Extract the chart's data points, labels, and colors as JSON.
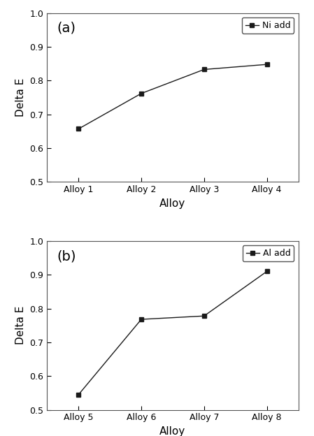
{
  "panel_a": {
    "x_labels": [
      "Alloy 1",
      "Alloy 2",
      "Alloy 3",
      "Alloy 4"
    ],
    "y_values": [
      0.657,
      0.762,
      0.833,
      0.848
    ],
    "legend_label": "Ni add",
    "panel_label": "(a)",
    "ylim": [
      0.5,
      1.0
    ],
    "yticks": [
      0.5,
      0.6,
      0.7,
      0.8,
      0.9,
      1.0
    ],
    "xlabel": "Alloy",
    "ylabel": "Delta E"
  },
  "panel_b": {
    "x_labels": [
      "Alloy 5",
      "Alloy 6",
      "Alloy 7",
      "Alloy 8"
    ],
    "y_values": [
      0.545,
      0.768,
      0.778,
      0.91
    ],
    "legend_label": "Al add",
    "panel_label": "(b)",
    "ylim": [
      0.5,
      1.0
    ],
    "yticks": [
      0.5,
      0.6,
      0.7,
      0.8,
      0.9,
      1.0
    ],
    "xlabel": "Alloy",
    "ylabel": "Delta E"
  },
  "line_color": "#1a1a1a",
  "marker": "s",
  "marker_size": 5,
  "marker_facecolor": "#1a1a1a",
  "line_style": "-",
  "line_width": 1.0,
  "panel_label_fontsize": 14,
  "axis_label_fontsize": 11,
  "tick_label_fontsize": 9,
  "legend_fontsize": 9,
  "figure_facecolor": "#ffffff"
}
